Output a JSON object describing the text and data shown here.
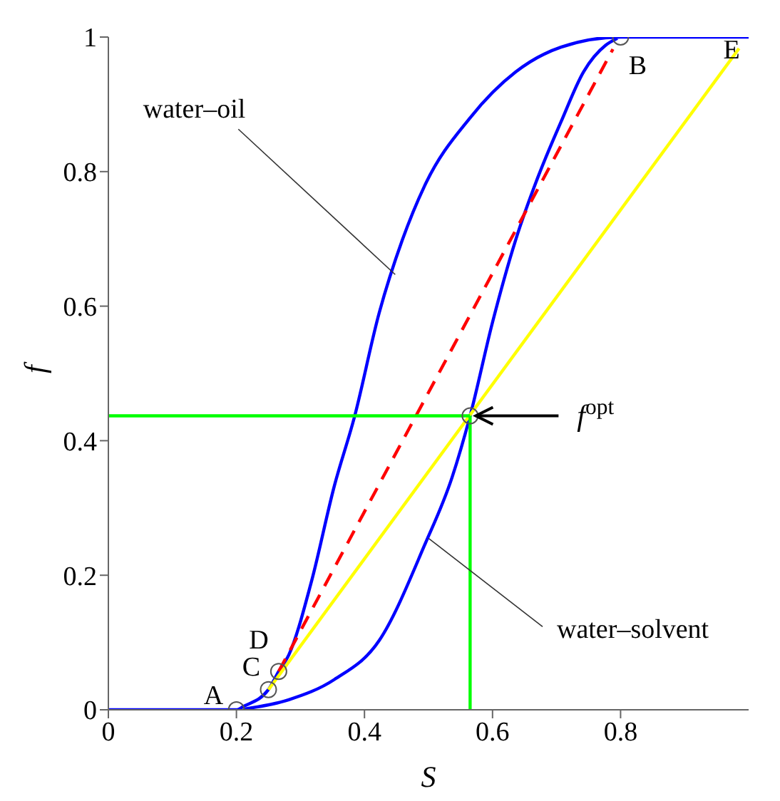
{
  "chart_data": {
    "type": "line",
    "xlabel": "S",
    "ylabel": "f",
    "xlim": [
      0,
      1
    ],
    "xticks": [
      0,
      0.2,
      0.4,
      0.6,
      0.8
    ],
    "ylim": [
      0,
      1
    ],
    "yticks": [
      0,
      0.2,
      0.4,
      0.6,
      0.8,
      1
    ],
    "grid": false,
    "legend": false,
    "marker": "none",
    "series": [
      {
        "color": "#0000ff",
        "x": [
          0,
          0.2,
          0.211,
          0.25,
          0.266,
          0.282,
          0.317,
          0.353,
          0.384,
          0.423,
          0.459,
          0.494,
          0.565,
          0.636,
          0.707,
          0.8,
          1
        ],
        "values": [
          0,
          0,
          0.005,
          0.03,
          0.057,
          0.082,
          0.19,
          0.333,
          0.434,
          0.59,
          0.698,
          0.779,
          0.88,
          0.948,
          0.985,
          1,
          1
        ]
      },
      {
        "color": "#0000ff",
        "x": [
          0.211,
          0.282,
          0.353,
          0.423,
          0.494,
          0.537,
          0.565,
          0.6,
          0.636,
          0.671,
          0.707,
          0.742,
          0.777,
          0.795
        ],
        "values": [
          0.001,
          0.015,
          0.045,
          0.103,
          0.245,
          0.346,
          0.437,
          0.576,
          0.698,
          0.792,
          0.874,
          0.948,
          0.988,
          0.998
        ]
      },
      {
        "color": "#ff0000",
        "line_style": "dashed",
        "x": [
          0.266,
          0.788
        ],
        "values": [
          0.057,
          0.982
        ]
      },
      {
        "color": "#ffff00",
        "x": [
          0.25,
          0.985
        ],
        "values": [
          0.03,
          0.983
        ]
      },
      {
        "color": "#00ff00",
        "x": [
          0,
          0.565
        ],
        "values": [
          0.437,
          0.437
        ]
      },
      {
        "color": "#00ff00",
        "x": [
          0.565,
          0.565
        ],
        "values": [
          0,
          0.437
        ]
      },
      {
        "type": "scatter",
        "color": "#555555",
        "marker": "circle",
        "x": [
          0.2,
          0.25,
          0.266,
          0.8,
          0.565
        ],
        "values": [
          0,
          0.03,
          0.057,
          1,
          0.437
        ]
      }
    ],
    "annotations": [
      {
        "text": "water–oil",
        "x": 0.448,
        "y": 0.647
      },
      {
        "text": "water–solvent",
        "x": 0.5,
        "y": 0.255
      },
      {
        "text": "f$^{opt}$",
        "x": 0.565,
        "y": 0.437
      },
      {
        "text": "A",
        "x": 0.2,
        "y": 0
      },
      {
        "text": "C",
        "x": 0.25,
        "y": 0.03
      },
      {
        "text": "D",
        "x": 0.266,
        "y": 0.057
      },
      {
        "text": "B",
        "x": 0.8,
        "y": 1
      },
      {
        "text": "E",
        "x": 0.951,
        "y": 0.934
      }
    ]
  }
}
